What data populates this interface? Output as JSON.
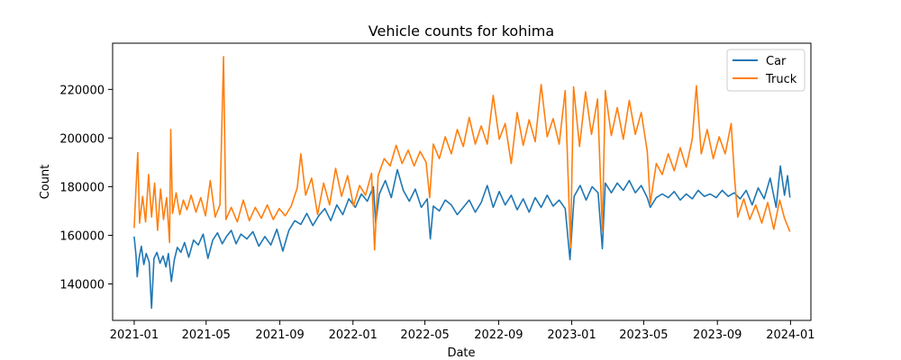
{
  "chart_data": {
    "type": "line",
    "title": "Vehicle counts for kohima",
    "xlabel": "Date",
    "ylabel": "Count",
    "xlim": [
      "2020-11-26",
      "2024-02-04"
    ],
    "ylim": [
      125000,
      239000
    ],
    "x_ticks": [
      "2021-01",
      "2021-05",
      "2021-09",
      "2022-01",
      "2022-05",
      "2022-09",
      "2023-01",
      "2023-05",
      "2023-09",
      "2024-01"
    ],
    "y_ticks": [
      140000,
      160000,
      180000,
      200000,
      220000
    ],
    "y_tick_labels": [
      "140000",
      "160000",
      "180000",
      "200000",
      "220000"
    ],
    "grid": false,
    "legend_position": "top-right",
    "series": [
      {
        "name": "Car",
        "color": "#1f77b4",
        "points": [
          [
            "2021-01-01",
            159500
          ],
          [
            "2021-01-04",
            152000
          ],
          [
            "2021-01-06",
            143000
          ],
          [
            "2021-01-09",
            150500
          ],
          [
            "2021-01-13",
            155500
          ],
          [
            "2021-01-17",
            148000
          ],
          [
            "2021-01-21",
            152500
          ],
          [
            "2021-01-26",
            149000
          ],
          [
            "2021-01-30",
            130000
          ],
          [
            "2021-02-03",
            150500
          ],
          [
            "2021-02-08",
            153000
          ],
          [
            "2021-02-13",
            148500
          ],
          [
            "2021-02-18",
            151500
          ],
          [
            "2021-02-23",
            147000
          ],
          [
            "2021-02-27",
            152500
          ],
          [
            "2021-03-04",
            141000
          ],
          [
            "2021-03-09",
            150000
          ],
          [
            "2021-03-14",
            155000
          ],
          [
            "2021-03-20",
            153000
          ],
          [
            "2021-03-26",
            157000
          ],
          [
            "2021-04-02",
            151000
          ],
          [
            "2021-04-10",
            158000
          ],
          [
            "2021-04-18",
            156000
          ],
          [
            "2021-04-26",
            160500
          ],
          [
            "2021-05-04",
            150500
          ],
          [
            "2021-05-12",
            158000
          ],
          [
            "2021-05-20",
            161000
          ],
          [
            "2021-05-28",
            156500
          ],
          [
            "2021-06-04",
            159500
          ],
          [
            "2021-06-12",
            162000
          ],
          [
            "2021-06-20",
            156500
          ],
          [
            "2021-06-28",
            160500
          ],
          [
            "2021-07-08",
            158500
          ],
          [
            "2021-07-18",
            161500
          ],
          [
            "2021-07-28",
            155500
          ],
          [
            "2021-08-07",
            159500
          ],
          [
            "2021-08-17",
            156000
          ],
          [
            "2021-08-27",
            162500
          ],
          [
            "2021-09-06",
            153500
          ],
          [
            "2021-09-16",
            162000
          ],
          [
            "2021-09-26",
            166000
          ],
          [
            "2021-10-06",
            164500
          ],
          [
            "2021-10-16",
            169000
          ],
          [
            "2021-10-26",
            164000
          ],
          [
            "2021-11-05",
            168000
          ],
          [
            "2021-11-15",
            171000
          ],
          [
            "2021-11-25",
            166000
          ],
          [
            "2021-12-05",
            172500
          ],
          [
            "2021-12-15",
            168500
          ],
          [
            "2021-12-25",
            175000
          ],
          [
            "2022-01-05",
            171500
          ],
          [
            "2022-01-15",
            177000
          ],
          [
            "2022-01-25",
            174000
          ],
          [
            "2022-02-04",
            180000
          ],
          [
            "2022-02-08",
            165000
          ],
          [
            "2022-02-14",
            177000
          ],
          [
            "2022-02-24",
            182500
          ],
          [
            "2022-03-06",
            175500
          ],
          [
            "2022-03-16",
            187000
          ],
          [
            "2022-03-26",
            178500
          ],
          [
            "2022-04-05",
            174000
          ],
          [
            "2022-04-15",
            179000
          ],
          [
            "2022-04-25",
            171500
          ],
          [
            "2022-05-05",
            175000
          ],
          [
            "2022-05-10",
            158500
          ],
          [
            "2022-05-15",
            172000
          ],
          [
            "2022-05-25",
            170000
          ],
          [
            "2022-06-04",
            174500
          ],
          [
            "2022-06-14",
            172500
          ],
          [
            "2022-06-24",
            168500
          ],
          [
            "2022-07-04",
            171500
          ],
          [
            "2022-07-14",
            174500
          ],
          [
            "2022-07-24",
            169500
          ],
          [
            "2022-08-03",
            173500
          ],
          [
            "2022-08-13",
            180500
          ],
          [
            "2022-08-23",
            171500
          ],
          [
            "2022-09-02",
            178000
          ],
          [
            "2022-09-12",
            172500
          ],
          [
            "2022-09-22",
            176500
          ],
          [
            "2022-10-02",
            170500
          ],
          [
            "2022-10-12",
            175000
          ],
          [
            "2022-10-22",
            169500
          ],
          [
            "2022-11-01",
            175500
          ],
          [
            "2022-11-11",
            171500
          ],
          [
            "2022-11-21",
            176500
          ],
          [
            "2022-12-01",
            172000
          ],
          [
            "2022-12-11",
            174500
          ],
          [
            "2022-12-21",
            171000
          ],
          [
            "2022-12-29",
            150000
          ],
          [
            "2023-01-05",
            176000
          ],
          [
            "2023-01-15",
            180500
          ],
          [
            "2023-01-25",
            174500
          ],
          [
            "2023-02-04",
            180000
          ],
          [
            "2023-02-14",
            177500
          ],
          [
            "2023-02-21",
            154500
          ],
          [
            "2023-02-26",
            181500
          ],
          [
            "2023-03-08",
            177500
          ],
          [
            "2023-03-18",
            181500
          ],
          [
            "2023-03-28",
            178500
          ],
          [
            "2023-04-07",
            182500
          ],
          [
            "2023-04-17",
            177500
          ],
          [
            "2023-04-27",
            180500
          ],
          [
            "2023-05-07",
            175500
          ],
          [
            "2023-05-12",
            171500
          ],
          [
            "2023-05-22",
            175500
          ],
          [
            "2023-06-01",
            177000
          ],
          [
            "2023-06-11",
            175500
          ],
          [
            "2023-06-21",
            178000
          ],
          [
            "2023-07-01",
            174500
          ],
          [
            "2023-07-11",
            177000
          ],
          [
            "2023-07-21",
            175000
          ],
          [
            "2023-07-31",
            178500
          ],
          [
            "2023-08-10",
            176000
          ],
          [
            "2023-08-20",
            177000
          ],
          [
            "2023-08-30",
            175500
          ],
          [
            "2023-09-09",
            178500
          ],
          [
            "2023-09-19",
            176000
          ],
          [
            "2023-09-29",
            177500
          ],
          [
            "2023-10-09",
            175000
          ],
          [
            "2023-10-19",
            178500
          ],
          [
            "2023-10-29",
            172500
          ],
          [
            "2023-11-08",
            179500
          ],
          [
            "2023-11-18",
            175000
          ],
          [
            "2023-11-28",
            183500
          ],
          [
            "2023-12-08",
            171500
          ],
          [
            "2023-12-15",
            188500
          ],
          [
            "2023-12-22",
            176500
          ],
          [
            "2023-12-27",
            184500
          ],
          [
            "2023-12-31",
            175500
          ]
        ]
      },
      {
        "name": "Truck",
        "color": "#ff7f0e",
        "points": [
          [
            "2021-01-01",
            163000
          ],
          [
            "2021-01-04",
            179000
          ],
          [
            "2021-01-07",
            194000
          ],
          [
            "2021-01-10",
            165000
          ],
          [
            "2021-01-15",
            176000
          ],
          [
            "2021-01-20",
            165500
          ],
          [
            "2021-01-25",
            185000
          ],
          [
            "2021-01-30",
            167500
          ],
          [
            "2021-02-04",
            181500
          ],
          [
            "2021-02-09",
            162000
          ],
          [
            "2021-02-14",
            179000
          ],
          [
            "2021-02-19",
            166500
          ],
          [
            "2021-02-24",
            175500
          ],
          [
            "2021-03-01",
            157000
          ],
          [
            "2021-03-03",
            203500
          ],
          [
            "2021-03-06",
            169000
          ],
          [
            "2021-03-12",
            177500
          ],
          [
            "2021-03-18",
            168500
          ],
          [
            "2021-03-24",
            174500
          ],
          [
            "2021-03-30",
            170500
          ],
          [
            "2021-04-06",
            176500
          ],
          [
            "2021-04-14",
            169500
          ],
          [
            "2021-04-22",
            175500
          ],
          [
            "2021-04-30",
            168000
          ],
          [
            "2021-05-08",
            182500
          ],
          [
            "2021-05-16",
            167500
          ],
          [
            "2021-05-24",
            172500
          ],
          [
            "2021-05-30",
            233500
          ],
          [
            "2021-06-03",
            166500
          ],
          [
            "2021-06-12",
            171500
          ],
          [
            "2021-06-22",
            165500
          ],
          [
            "2021-07-02",
            174500
          ],
          [
            "2021-07-12",
            166000
          ],
          [
            "2021-07-22",
            171500
          ],
          [
            "2021-08-01",
            167000
          ],
          [
            "2021-08-11",
            172500
          ],
          [
            "2021-08-21",
            166500
          ],
          [
            "2021-08-31",
            171000
          ],
          [
            "2021-09-10",
            168000
          ],
          [
            "2021-09-20",
            172000
          ],
          [
            "2021-09-30",
            179500
          ],
          [
            "2021-10-06",
            193500
          ],
          [
            "2021-10-14",
            176500
          ],
          [
            "2021-10-24",
            183500
          ],
          [
            "2021-11-03",
            168500
          ],
          [
            "2021-11-13",
            181500
          ],
          [
            "2021-11-23",
            172500
          ],
          [
            "2021-12-03",
            187500
          ],
          [
            "2021-12-13",
            176000
          ],
          [
            "2021-12-23",
            184500
          ],
          [
            "2022-01-02",
            172000
          ],
          [
            "2022-01-12",
            180500
          ],
          [
            "2022-01-22",
            176500
          ],
          [
            "2022-02-01",
            185500
          ],
          [
            "2022-02-06",
            154000
          ],
          [
            "2022-02-12",
            184500
          ],
          [
            "2022-02-22",
            191500
          ],
          [
            "2022-03-04",
            188500
          ],
          [
            "2022-03-14",
            197000
          ],
          [
            "2022-03-24",
            189500
          ],
          [
            "2022-04-03",
            195000
          ],
          [
            "2022-04-13",
            188500
          ],
          [
            "2022-04-23",
            194500
          ],
          [
            "2022-05-03",
            190000
          ],
          [
            "2022-05-09",
            175500
          ],
          [
            "2022-05-15",
            197500
          ],
          [
            "2022-05-25",
            191500
          ],
          [
            "2022-06-04",
            200500
          ],
          [
            "2022-06-14",
            193500
          ],
          [
            "2022-06-24",
            203500
          ],
          [
            "2022-07-04",
            196500
          ],
          [
            "2022-07-14",
            208500
          ],
          [
            "2022-07-24",
            197500
          ],
          [
            "2022-08-03",
            205000
          ],
          [
            "2022-08-13",
            197500
          ],
          [
            "2022-08-23",
            217500
          ],
          [
            "2022-09-02",
            199500
          ],
          [
            "2022-09-12",
            206000
          ],
          [
            "2022-09-22",
            189500
          ],
          [
            "2022-10-02",
            210500
          ],
          [
            "2022-10-12",
            197000
          ],
          [
            "2022-10-22",
            207500
          ],
          [
            "2022-11-01",
            198500
          ],
          [
            "2022-11-11",
            222000
          ],
          [
            "2022-11-21",
            200500
          ],
          [
            "2022-12-01",
            208000
          ],
          [
            "2022-12-11",
            197500
          ],
          [
            "2022-12-21",
            219500
          ],
          [
            "2022-12-30",
            155000
          ],
          [
            "2023-01-04",
            221000
          ],
          [
            "2023-01-14",
            196500
          ],
          [
            "2023-01-24",
            219000
          ],
          [
            "2023-02-03",
            201500
          ],
          [
            "2023-02-13",
            216000
          ],
          [
            "2023-02-21",
            162000
          ],
          [
            "2023-02-26",
            219500
          ],
          [
            "2023-03-08",
            201000
          ],
          [
            "2023-03-18",
            212500
          ],
          [
            "2023-03-28",
            199500
          ],
          [
            "2023-04-07",
            215500
          ],
          [
            "2023-04-17",
            201500
          ],
          [
            "2023-04-27",
            210500
          ],
          [
            "2023-05-07",
            194500
          ],
          [
            "2023-05-12",
            173000
          ],
          [
            "2023-05-22",
            189500
          ],
          [
            "2023-06-01",
            185000
          ],
          [
            "2023-06-11",
            193500
          ],
          [
            "2023-06-21",
            186500
          ],
          [
            "2023-07-01",
            196000
          ],
          [
            "2023-07-11",
            188000
          ],
          [
            "2023-07-21",
            199500
          ],
          [
            "2023-07-28",
            221500
          ],
          [
            "2023-08-05",
            193500
          ],
          [
            "2023-08-15",
            203500
          ],
          [
            "2023-08-25",
            191500
          ],
          [
            "2023-09-04",
            200500
          ],
          [
            "2023-09-14",
            193500
          ],
          [
            "2023-09-24",
            206000
          ],
          [
            "2023-09-30",
            182500
          ],
          [
            "2023-10-05",
            167500
          ],
          [
            "2023-10-15",
            175000
          ],
          [
            "2023-10-25",
            166500
          ],
          [
            "2023-11-04",
            172500
          ],
          [
            "2023-11-14",
            165000
          ],
          [
            "2023-11-24",
            173500
          ],
          [
            "2023-12-04",
            162500
          ],
          [
            "2023-12-14",
            174500
          ],
          [
            "2023-12-22",
            167000
          ],
          [
            "2023-12-31",
            161500
          ]
        ]
      }
    ]
  }
}
